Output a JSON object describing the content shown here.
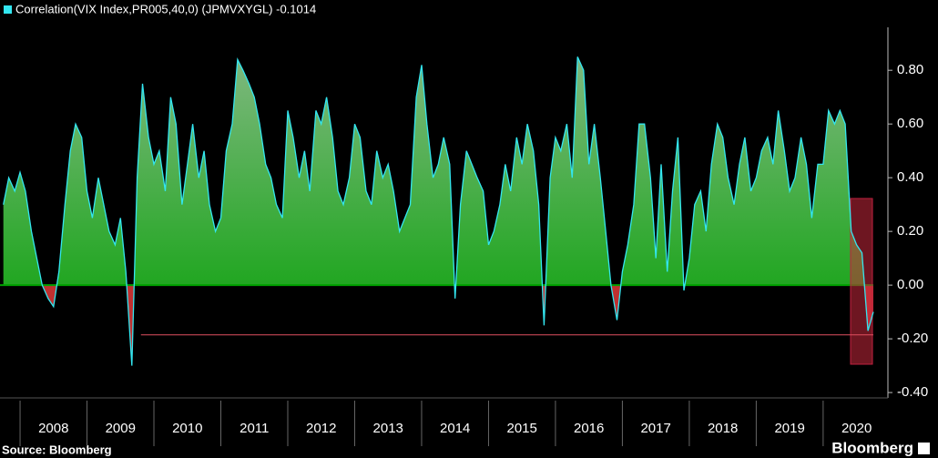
{
  "chart_data": {
    "type": "area",
    "legend_label": "Correlation(VIX Index,PR005,40,0) (JPMVXYGL) -0.1014",
    "source": "Source: Bloomberg",
    "brand": "Bloomberg",
    "series": [
      {
        "name": "Correlation(VIX Index,PR005,40,0) (JPMVXYGL) -0.1014",
        "color": "#33e6f0",
        "x": [
          2007.75,
          2007.83,
          2007.92,
          2008.0,
          2008.08,
          2008.17,
          2008.25,
          2008.33,
          2008.42,
          2008.5,
          2008.58,
          2008.67,
          2008.75,
          2008.83,
          2008.92,
          2009.0,
          2009.08,
          2009.17,
          2009.25,
          2009.33,
          2009.42,
          2009.5,
          2009.58,
          2009.67,
          2009.75,
          2009.83,
          2009.92,
          2010.0,
          2010.08,
          2010.17,
          2010.25,
          2010.33,
          2010.42,
          2010.5,
          2010.58,
          2010.67,
          2010.75,
          2010.83,
          2010.92,
          2011.0,
          2011.08,
          2011.17,
          2011.25,
          2011.33,
          2011.42,
          2011.5,
          2011.58,
          2011.67,
          2011.75,
          2011.83,
          2011.92,
          2012.0,
          2012.08,
          2012.17,
          2012.25,
          2012.33,
          2012.42,
          2012.5,
          2012.58,
          2012.67,
          2012.75,
          2012.83,
          2012.92,
          2013.0,
          2013.08,
          2013.17,
          2013.25,
          2013.33,
          2013.42,
          2013.5,
          2013.58,
          2013.67,
          2013.75,
          2013.83,
          2013.92,
          2014.0,
          2014.08,
          2014.17,
          2014.25,
          2014.33,
          2014.42,
          2014.5,
          2014.58,
          2014.67,
          2014.75,
          2014.83,
          2014.92,
          2015.0,
          2015.08,
          2015.17,
          2015.25,
          2015.33,
          2015.42,
          2015.5,
          2015.58,
          2015.67,
          2015.75,
          2015.83,
          2015.92,
          2016.0,
          2016.08,
          2016.17,
          2016.25,
          2016.33,
          2016.42,
          2016.5,
          2016.58,
          2016.67,
          2016.75,
          2016.83,
          2016.92,
          2017.0,
          2017.08,
          2017.17,
          2017.25,
          2017.33,
          2017.42,
          2017.5,
          2017.58,
          2017.67,
          2017.75,
          2017.83,
          2017.92,
          2018.0,
          2018.08,
          2018.17,
          2018.25,
          2018.33,
          2018.42,
          2018.5,
          2018.58,
          2018.67,
          2018.75,
          2018.83,
          2018.92,
          2019.0,
          2019.08,
          2019.17,
          2019.25,
          2019.33,
          2019.42,
          2019.5,
          2019.58,
          2019.67,
          2019.75,
          2019.83,
          2019.92,
          2020.0,
          2020.08,
          2020.17,
          2020.25,
          2020.33,
          2020.42,
          2020.5,
          2020.58,
          2020.67,
          2020.75
        ],
        "values": [
          0.3,
          0.4,
          0.35,
          0.42,
          0.35,
          0.2,
          0.1,
          0.0,
          -0.05,
          -0.08,
          0.05,
          0.3,
          0.5,
          0.6,
          0.55,
          0.35,
          0.25,
          0.4,
          0.3,
          0.2,
          0.15,
          0.25,
          0.05,
          -0.3,
          0.4,
          0.75,
          0.55,
          0.45,
          0.5,
          0.35,
          0.7,
          0.6,
          0.3,
          0.45,
          0.6,
          0.4,
          0.5,
          0.3,
          0.2,
          0.25,
          0.5,
          0.6,
          0.84,
          0.8,
          0.75,
          0.7,
          0.6,
          0.45,
          0.4,
          0.3,
          0.25,
          0.65,
          0.55,
          0.4,
          0.5,
          0.35,
          0.65,
          0.6,
          0.7,
          0.55,
          0.35,
          0.3,
          0.4,
          0.6,
          0.55,
          0.35,
          0.3,
          0.5,
          0.4,
          0.45,
          0.35,
          0.2,
          0.25,
          0.3,
          0.7,
          0.82,
          0.6,
          0.4,
          0.45,
          0.55,
          0.45,
          -0.05,
          0.3,
          0.5,
          0.45,
          0.4,
          0.35,
          0.15,
          0.2,
          0.3,
          0.45,
          0.35,
          0.55,
          0.45,
          0.6,
          0.5,
          0.3,
          -0.15,
          0.4,
          0.55,
          0.5,
          0.6,
          0.4,
          0.85,
          0.8,
          0.45,
          0.6,
          0.4,
          0.2,
          0.0,
          -0.13,
          0.05,
          0.15,
          0.3,
          0.6,
          0.6,
          0.4,
          0.1,
          0.45,
          0.05,
          0.35,
          0.55,
          -0.02,
          0.1,
          0.3,
          0.35,
          0.2,
          0.45,
          0.6,
          0.55,
          0.4,
          0.3,
          0.45,
          0.55,
          0.35,
          0.4,
          0.5,
          0.55,
          0.45,
          0.65,
          0.5,
          0.35,
          0.4,
          0.55,
          0.45,
          0.25,
          0.45,
          0.45,
          0.65,
          0.6,
          0.65,
          0.6,
          0.2,
          0.15,
          0.12,
          -0.17,
          -0.1
        ]
      }
    ],
    "reference_line": {
      "value": -0.185,
      "color": "#e05060"
    },
    "xlim": [
      2007.7,
      2020.75
    ],
    "xticks": [
      2008,
      2009,
      2010,
      2011,
      2012,
      2013,
      2014,
      2015,
      2016,
      2017,
      2018,
      2019,
      2020
    ],
    "ylim": [
      -0.42,
      0.96
    ],
    "yticks": [
      {
        "value": 0.8,
        "label": "0.80"
      },
      {
        "value": 0.6,
        "label": "0.60"
      },
      {
        "value": 0.4,
        "label": "0.40"
      },
      {
        "value": 0.2,
        "label": "0.20"
      },
      {
        "value": 0,
        "label": "0.00"
      },
      {
        "value": -0.2,
        "label": "-0.20"
      },
      {
        "value": -0.4,
        "label": "-0.40"
      }
    ],
    "positive_color": "#00a000",
    "negative_color": "#c03030"
  }
}
